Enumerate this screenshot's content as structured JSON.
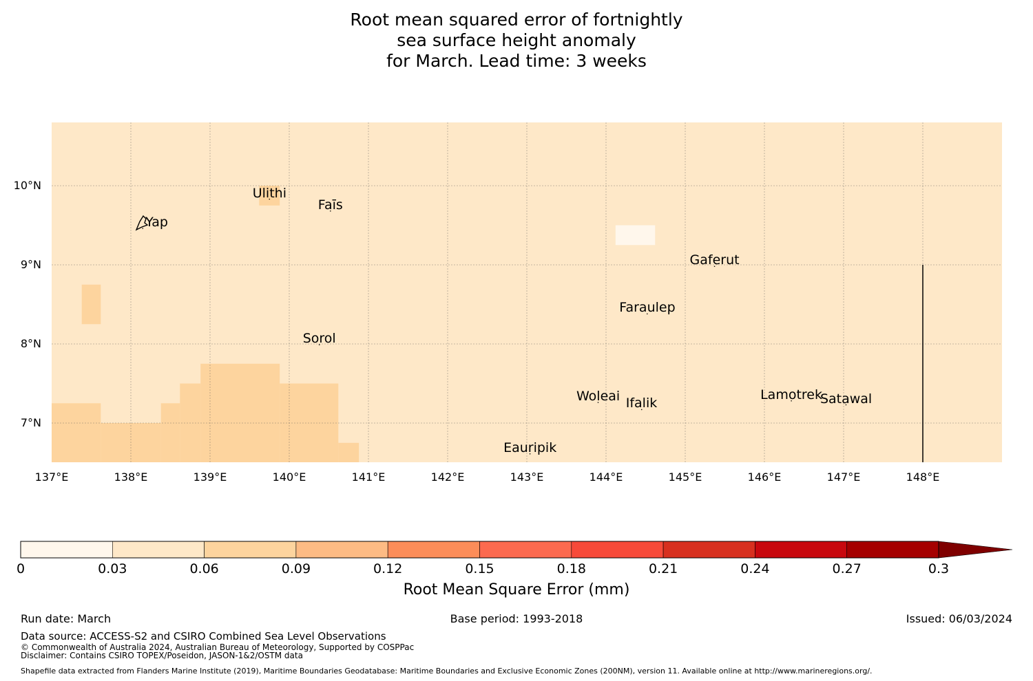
{
  "title": {
    "line1": "Root mean squared error of fortnightly",
    "line2": "sea surface height anomaly",
    "line3": "for March. Lead time: 3 weeks"
  },
  "map": {
    "lon_range": [
      137,
      149
    ],
    "lat_range": [
      6.5,
      10.8
    ],
    "lat_labels": [
      {
        "lat": 10,
        "label": "10°N"
      },
      {
        "lat": 9,
        "label": "9°N"
      },
      {
        "lat": 8,
        "label": "8°N"
      },
      {
        "lat": 7,
        "label": "7°N"
      }
    ],
    "lon_labels": [
      {
        "lon": 137,
        "label": "137°E"
      },
      {
        "lon": 138,
        "label": "138°E"
      },
      {
        "lon": 139,
        "label": "139°E"
      },
      {
        "lon": 140,
        "label": "140°E"
      },
      {
        "lon": 141,
        "label": "141°E"
      },
      {
        "lon": 142,
        "label": "142°E"
      },
      {
        "lon": 143,
        "label": "143°E"
      },
      {
        "lon": 144,
        "label": "144°E"
      },
      {
        "lon": 145,
        "label": "145°E"
      },
      {
        "lon": 146,
        "label": "146°E"
      },
      {
        "lon": 147,
        "label": "147°E"
      },
      {
        "lon": 148,
        "label": "148°E"
      }
    ],
    "background_color": "#fee8c8",
    "cells": [
      {
        "lon0": 137.0,
        "lon1": 137.62,
        "lat0": 6.5,
        "lat1": 7.25,
        "color": "#fdd49e"
      },
      {
        "lon0": 137.62,
        "lon1": 138.38,
        "lat0": 6.5,
        "lat1": 7.0,
        "color": "#fdd49e"
      },
      {
        "lon0": 138.38,
        "lon1": 138.62,
        "lat0": 6.5,
        "lat1": 7.25,
        "color": "#fdd49e"
      },
      {
        "lon0": 138.62,
        "lon1": 138.88,
        "lat0": 6.5,
        "lat1": 7.5,
        "color": "#fdd49e"
      },
      {
        "lon0": 138.88,
        "lon1": 139.88,
        "lat0": 6.5,
        "lat1": 7.75,
        "color": "#fdd49e"
      },
      {
        "lon0": 139.88,
        "lon1": 140.62,
        "lat0": 6.5,
        "lat1": 7.5,
        "color": "#fdd49e"
      },
      {
        "lon0": 140.62,
        "lon1": 140.88,
        "lat0": 6.5,
        "lat1": 6.75,
        "color": "#fdd49e"
      },
      {
        "lon0": 137.38,
        "lon1": 137.62,
        "lat0": 8.25,
        "lat1": 8.75,
        "color": "#fdd49e"
      },
      {
        "lon0": 139.62,
        "lon1": 139.88,
        "lat0": 9.75,
        "lat1": 10.0,
        "color": "#fdd49e"
      },
      {
        "lon0": 144.12,
        "lon1": 144.62,
        "lat0": 9.25,
        "lat1": 9.5,
        "color": "#fff7ec"
      }
    ],
    "boundary_line": {
      "lon": 148.0,
      "lat0": 6.5,
      "lat1": 9.0
    },
    "places": [
      {
        "name": "Ulithi",
        "lon": 139.75,
        "lat": 9.9
      },
      {
        "name": "Faīs",
        "lon": 140.52,
        "lat": 9.75
      },
      {
        "name": "Yap",
        "lon": 138.15,
        "lat": 9.53
      },
      {
        "name": "Gaferut",
        "lon": 145.37,
        "lat": 9.05
      },
      {
        "name": "Faraulep",
        "lon": 144.52,
        "lat": 8.45
      },
      {
        "name": "Sorol",
        "lon": 140.38,
        "lat": 8.06
      },
      {
        "name": "Woleai",
        "lon": 143.9,
        "lat": 7.33
      },
      {
        "name": "Lamotrek",
        "lon": 146.34,
        "lat": 7.35
      },
      {
        "name": "Satawal",
        "lon": 147.03,
        "lat": 7.3
      },
      {
        "name": "Ifalik",
        "lon": 144.45,
        "lat": 7.24
      },
      {
        "name": "Eauripik",
        "lon": 143.04,
        "lat": 6.68
      }
    ]
  },
  "colorbar": {
    "label": "Root Mean Square Error (mm)",
    "ticks": [
      "0",
      "0.03",
      "0.06",
      "0.09",
      "0.12",
      "0.15",
      "0.18",
      "0.21",
      "0.24",
      "0.27",
      "0.3"
    ],
    "colors": [
      "#fff7ec",
      "#fee8c8",
      "#fdd49e",
      "#fdbb84",
      "#fc8d59",
      "#fc6a4f",
      "#f74a39",
      "#d7301f",
      "#c8080e",
      "#a50000"
    ],
    "extend_color": "#7f0000"
  },
  "footer": {
    "run_date": "Run date: March",
    "base_period": "Base period: 1993-2018",
    "issued": "Issued: 06/03/2024",
    "data_source": "Data source: ACCESS-S2 and CSIRO Combined Sea Level Observations",
    "copyright": "© Commonwealth of Australia 2024, Australian Bureau of Meteorology, Supported by COSPPac",
    "disclaimer": "Disclaimer: Contains CSIRO TOPEX/Poseidon, JASON-1&2/OSTM data",
    "shapefile": "Shapefile data extracted from Flanders Marine Institute (2019), Maritime Boundaries Geodatabase: Maritime Boundaries and Exclusive Economic Zones (200NM), version 11. Available online at http://www.marineregions.org/."
  }
}
